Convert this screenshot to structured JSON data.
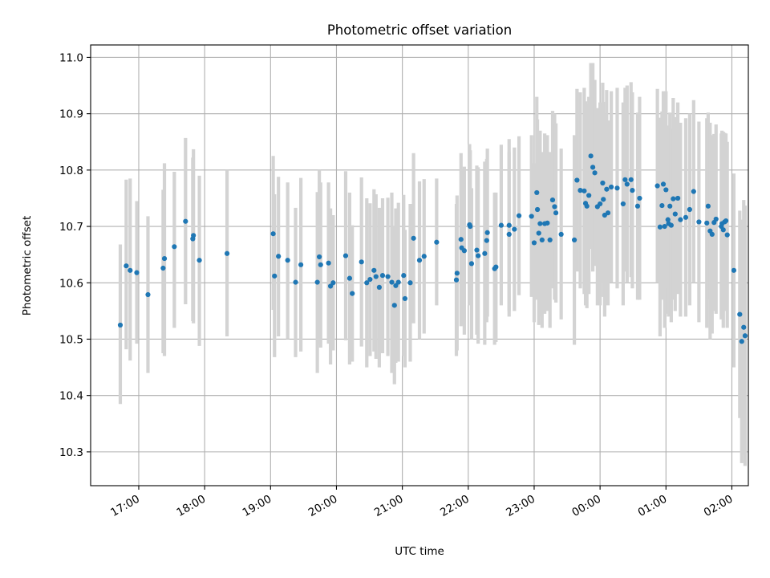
{
  "chart_data": {
    "type": "scatter",
    "title": "Photometric offset variation",
    "xlabel": "UTC time",
    "ylabel": "Photometric offset",
    "x_axis": "time (hours since 17:00 UTC, continuing past midnight)",
    "xlim_hours": [
      -0.73,
      9.25
    ],
    "ylim": [
      10.24,
      11.022
    ],
    "grid": true,
    "x_ticks": [
      {
        "value": 0,
        "label": "17:00"
      },
      {
        "value": 1,
        "label": "18:00"
      },
      {
        "value": 2,
        "label": "19:00"
      },
      {
        "value": 3,
        "label": "20:00"
      },
      {
        "value": 4,
        "label": "21:00"
      },
      {
        "value": 5,
        "label": "22:00"
      },
      {
        "value": 6,
        "label": "23:00"
      },
      {
        "value": 7,
        "label": "00:00"
      },
      {
        "value": 8,
        "label": "01:00"
      },
      {
        "value": 9,
        "label": "02:00"
      }
    ],
    "y_ticks": [
      {
        "value": 10.3,
        "label": "10.3"
      },
      {
        "value": 10.4,
        "label": "10.4"
      },
      {
        "value": 10.5,
        "label": "10.5"
      },
      {
        "value": 10.6,
        "label": "10.6"
      },
      {
        "value": 10.7,
        "label": "10.7"
      },
      {
        "value": 10.8,
        "label": "10.8"
      },
      {
        "value": 10.9,
        "label": "10.9"
      },
      {
        "value": 11.0,
        "label": "11.0"
      }
    ],
    "point_color": "#1f77b4",
    "errorbar_color": "#d3d3d3",
    "points": [
      [
        -0.28,
        10.525,
        10.385,
        10.668
      ],
      [
        -0.19,
        10.63,
        10.482,
        10.783
      ],
      [
        -0.13,
        10.622,
        10.462,
        10.785
      ],
      [
        -0.03,
        10.618,
        10.492,
        10.745
      ],
      [
        0.14,
        10.579,
        10.44,
        10.718
      ],
      [
        0.37,
        10.626,
        10.475,
        10.765
      ],
      [
        0.39,
        10.643,
        10.47,
        10.812
      ],
      [
        0.54,
        10.664,
        10.52,
        10.797
      ],
      [
        0.71,
        10.709,
        10.562,
        10.857
      ],
      [
        0.83,
        10.684,
        10.528,
        10.837
      ],
      [
        0.82,
        10.678,
        10.532,
        10.822
      ],
      [
        0.92,
        10.64,
        10.488,
        10.79
      ],
      [
        1.34,
        10.652,
        10.505,
        10.8
      ],
      [
        2.04,
        10.687,
        10.552,
        10.825
      ],
      [
        2.06,
        10.612,
        10.468,
        10.757
      ],
      [
        2.12,
        10.647,
        10.505,
        10.788
      ],
      [
        2.26,
        10.64,
        10.5,
        10.778
      ],
      [
        2.38,
        10.601,
        10.468,
        10.733
      ],
      [
        2.46,
        10.632,
        10.478,
        10.786
      ],
      [
        2.71,
        10.601,
        10.44,
        10.761
      ],
      [
        2.74,
        10.646,
        10.49,
        10.8
      ],
      [
        2.76,
        10.632,
        10.485,
        10.778
      ],
      [
        2.88,
        10.635,
        10.492,
        10.778
      ],
      [
        2.91,
        10.594,
        10.455,
        10.732
      ],
      [
        2.95,
        10.6,
        10.48,
        10.72
      ],
      [
        3.14,
        10.648,
        10.498,
        10.798
      ],
      [
        3.2,
        10.608,
        10.455,
        10.76
      ],
      [
        3.24,
        10.581,
        10.46,
        10.702
      ],
      [
        3.38,
        10.637,
        10.487,
        10.787
      ],
      [
        3.46,
        10.6,
        10.45,
        10.75
      ],
      [
        3.51,
        10.606,
        10.47,
        10.741
      ],
      [
        3.57,
        10.622,
        10.478,
        10.766
      ],
      [
        3.6,
        10.611,
        10.465,
        10.757
      ],
      [
        3.65,
        10.592,
        10.45,
        10.733
      ],
      [
        3.7,
        10.613,
        10.475,
        10.75
      ],
      [
        3.78,
        10.611,
        10.47,
        10.751
      ],
      [
        3.84,
        10.601,
        10.44,
        10.76
      ],
      [
        3.88,
        10.56,
        10.42,
        10.7
      ],
      [
        3.9,
        10.595,
        10.458,
        10.732
      ],
      [
        3.94,
        10.601,
        10.46,
        10.742
      ],
      [
        4.02,
        10.613,
        10.47,
        10.756
      ],
      [
        4.04,
        10.572,
        10.45,
        10.694
      ],
      [
        4.12,
        10.6,
        10.46,
        10.74
      ],
      [
        4.17,
        10.679,
        10.528,
        10.83
      ],
      [
        4.26,
        10.64,
        10.5,
        10.78
      ],
      [
        4.33,
        10.647,
        10.51,
        10.784
      ],
      [
        4.52,
        10.672,
        10.56,
        10.785
      ],
      [
        4.82,
        10.605,
        10.47,
        10.74
      ],
      [
        4.83,
        10.617,
        10.48,
        10.755
      ],
      [
        4.89,
        10.677,
        10.523,
        10.83
      ],
      [
        4.9,
        10.662,
        10.525,
        10.8
      ],
      [
        4.94,
        10.657,
        10.508,
        10.806
      ],
      [
        5.02,
        10.703,
        10.56,
        10.846
      ],
      [
        5.03,
        10.7,
        10.565,
        10.835
      ],
      [
        5.05,
        10.634,
        10.5,
        10.768
      ],
      [
        5.13,
        10.658,
        10.508,
        10.808
      ],
      [
        5.15,
        10.648,
        10.492,
        10.805
      ],
      [
        5.25,
        10.652,
        10.49,
        10.815
      ],
      [
        5.29,
        10.689,
        10.54,
        10.838
      ],
      [
        5.28,
        10.675,
        10.53,
        10.82
      ],
      [
        5.4,
        10.625,
        10.49,
        10.76
      ],
      [
        5.42,
        10.628,
        10.495,
        10.76
      ],
      [
        5.5,
        10.702,
        10.56,
        10.845
      ],
      [
        5.62,
        10.686,
        10.54,
        10.832
      ],
      [
        5.62,
        10.702,
        10.55,
        10.855
      ],
      [
        5.7,
        10.695,
        10.55,
        10.84
      ],
      [
        5.77,
        10.719,
        10.578,
        10.86
      ],
      [
        5.96,
        10.718,
        10.575,
        10.862
      ],
      [
        6.0,
        10.671,
        10.53,
        10.812
      ],
      [
        6.04,
        10.76,
        10.59,
        10.93
      ],
      [
        6.05,
        10.73,
        10.57,
        10.89
      ],
      [
        6.07,
        10.688,
        10.525,
        10.85
      ],
      [
        6.09,
        10.705,
        10.54,
        10.87
      ],
      [
        6.12,
        10.676,
        10.52,
        10.832
      ],
      [
        6.16,
        10.705,
        10.545,
        10.865
      ],
      [
        6.2,
        10.706,
        10.55,
        10.862
      ],
      [
        6.24,
        10.676,
        10.52,
        10.832
      ],
      [
        6.28,
        10.747,
        10.59,
        10.905
      ],
      [
        6.31,
        10.735,
        10.57,
        10.9
      ],
      [
        6.33,
        10.724,
        10.565,
        10.883
      ],
      [
        6.41,
        10.686,
        10.535,
        10.838
      ],
      [
        6.61,
        10.676,
        10.49,
        10.862
      ],
      [
        6.65,
        10.782,
        10.62,
        10.944
      ],
      [
        6.7,
        10.764,
        10.59,
        10.938
      ],
      [
        6.76,
        10.763,
        10.58,
        10.946
      ],
      [
        6.78,
        10.741,
        10.56,
        10.922
      ],
      [
        6.8,
        10.736,
        10.555,
        10.917
      ],
      [
        6.83,
        10.755,
        10.58,
        10.93
      ],
      [
        6.86,
        10.825,
        10.66,
        10.99
      ],
      [
        6.89,
        10.805,
        10.62,
        10.99
      ],
      [
        6.92,
        10.795,
        10.63,
        10.96
      ],
      [
        6.96,
        10.735,
        10.56,
        10.91
      ],
      [
        7.0,
        10.74,
        10.56,
        10.92
      ],
      [
        7.04,
        10.777,
        10.6,
        10.955
      ],
      [
        7.05,
        10.748,
        10.575,
        10.921
      ],
      [
        7.07,
        10.72,
        10.54,
        10.9
      ],
      [
        7.1,
        10.766,
        10.59,
        10.942
      ],
      [
        7.12,
        10.724,
        10.56,
        10.888
      ],
      [
        7.17,
        10.77,
        10.6,
        10.94
      ],
      [
        7.26,
        10.768,
        10.59,
        10.946
      ],
      [
        7.35,
        10.74,
        10.56,
        10.92
      ],
      [
        7.38,
        10.783,
        10.62,
        10.946
      ],
      [
        7.41,
        10.775,
        10.6,
        10.95
      ],
      [
        7.47,
        10.783,
        10.61,
        10.956
      ],
      [
        7.49,
        10.764,
        10.59,
        10.938
      ],
      [
        7.57,
        10.736,
        10.57,
        10.902
      ],
      [
        7.6,
        10.75,
        10.57,
        10.93
      ],
      [
        7.87,
        10.772,
        10.6,
        10.944
      ],
      [
        7.91,
        10.699,
        10.505,
        10.893
      ],
      [
        7.94,
        10.737,
        10.57,
        10.904
      ],
      [
        7.96,
        10.775,
        10.61,
        10.94
      ],
      [
        7.98,
        10.7,
        10.52,
        10.88
      ],
      [
        8.0,
        10.765,
        10.59,
        10.94
      ],
      [
        8.03,
        10.712,
        10.545,
        10.879
      ],
      [
        8.04,
        10.705,
        10.54,
        10.87
      ],
      [
        8.06,
        10.736,
        10.57,
        10.902
      ],
      [
        8.08,
        10.702,
        10.53,
        10.874
      ],
      [
        8.11,
        10.749,
        10.57,
        10.928
      ],
      [
        8.14,
        10.722,
        10.55,
        10.894
      ],
      [
        8.18,
        10.75,
        10.58,
        10.92
      ],
      [
        8.22,
        10.712,
        10.54,
        10.884
      ],
      [
        8.3,
        10.716,
        10.54,
        10.892
      ],
      [
        8.36,
        10.73,
        10.56,
        10.9
      ],
      [
        8.42,
        10.762,
        10.6,
        10.924
      ],
      [
        8.5,
        10.708,
        10.53,
        10.886
      ],
      [
        8.62,
        10.706,
        10.52,
        10.892
      ],
      [
        8.64,
        10.736,
        10.57,
        10.902
      ],
      [
        8.67,
        10.692,
        10.5,
        10.884
      ],
      [
        8.7,
        10.686,
        10.51,
        10.862
      ],
      [
        8.73,
        10.707,
        10.55,
        10.864
      ],
      [
        8.76,
        10.713,
        10.545,
        10.881
      ],
      [
        8.84,
        10.7,
        10.535,
        10.865
      ],
      [
        8.85,
        10.705,
        10.54,
        10.87
      ],
      [
        8.87,
        10.694,
        10.52,
        10.868
      ],
      [
        8.89,
        10.708,
        10.55,
        10.866
      ],
      [
        8.91,
        10.71,
        10.555,
        10.865
      ],
      [
        8.93,
        10.685,
        10.52,
        10.85
      ],
      [
        9.03,
        10.622,
        10.45,
        10.794
      ],
      [
        9.12,
        10.544,
        10.36,
        10.728
      ],
      [
        9.15,
        10.496,
        10.28,
        10.712
      ],
      [
        9.18,
        10.521,
        10.295,
        10.747
      ],
      [
        9.2,
        10.506,
        10.275,
        10.737
      ]
    ]
  }
}
